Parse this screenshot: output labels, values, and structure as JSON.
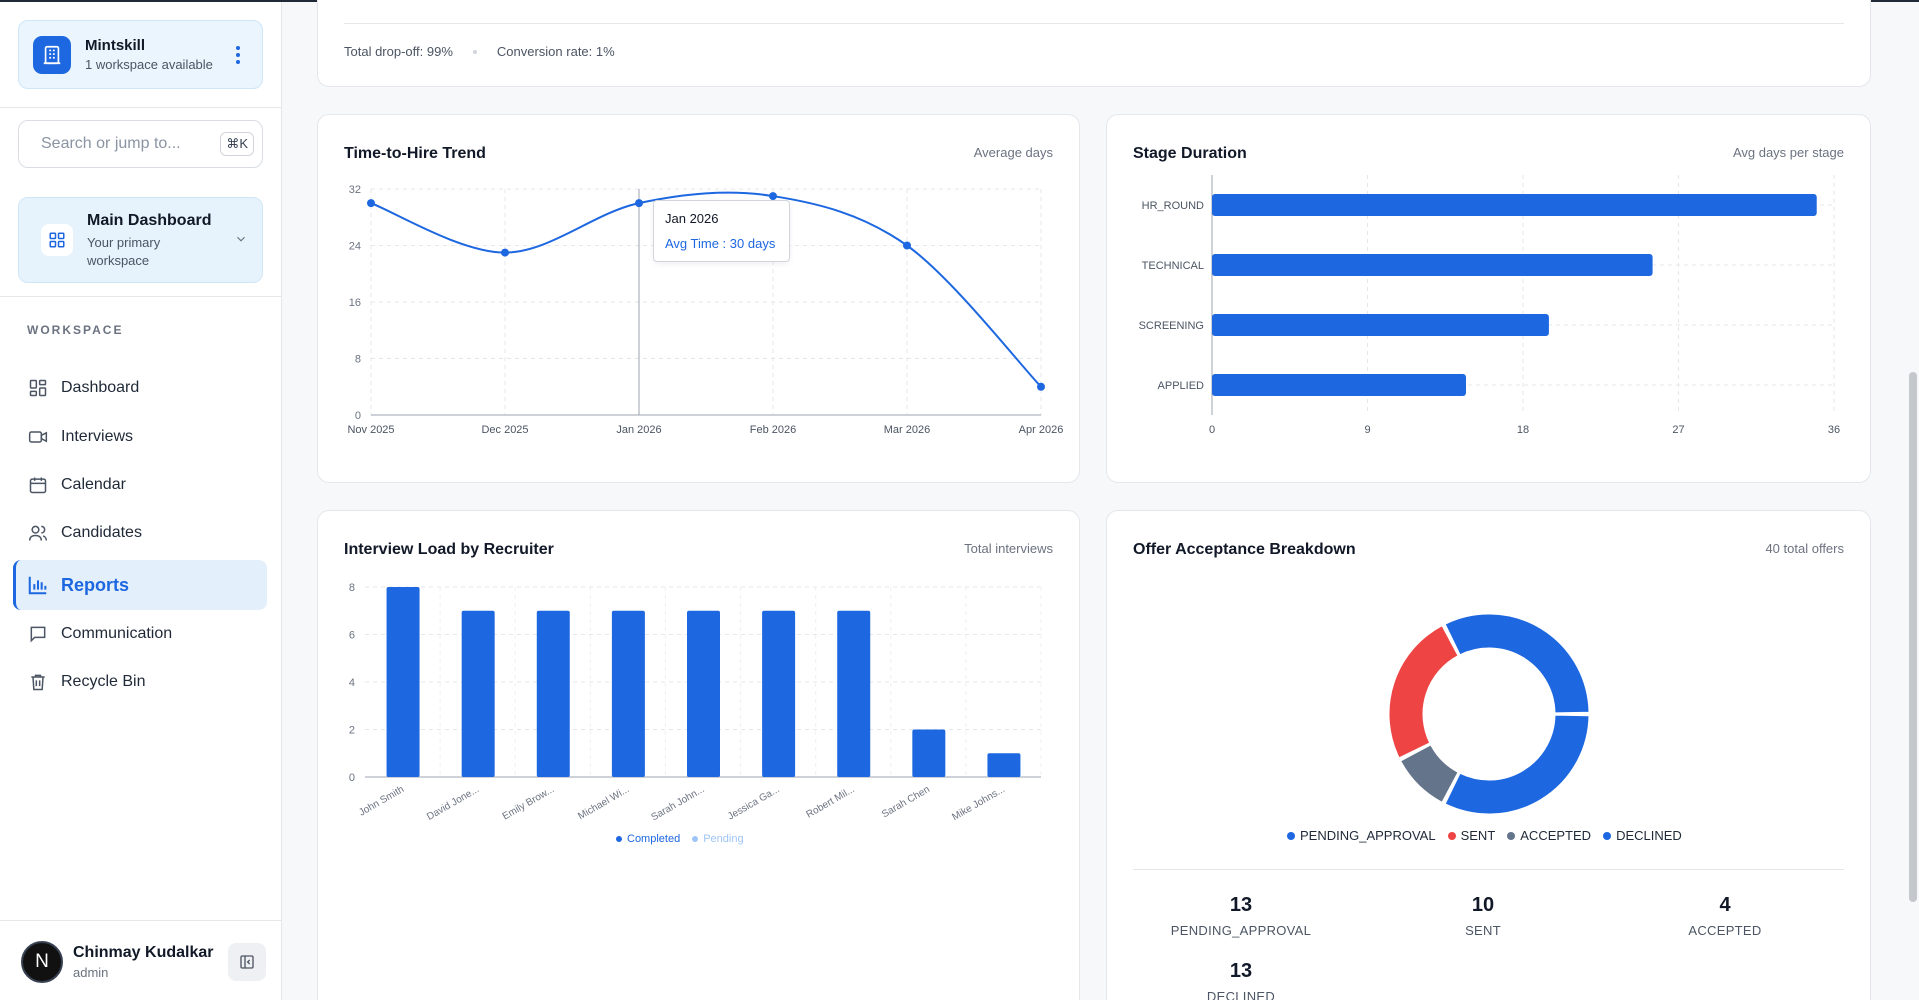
{
  "sidebar": {
    "workspace": {
      "name": "Mintskill",
      "subtitle": "1 workspace available"
    },
    "search": {
      "placeholder": "Search or jump to...",
      "shortcut": "⌘K"
    },
    "dashboard": {
      "title": "Main Dashboard",
      "subtitle": "Your primary workspace"
    },
    "section_label": "WORKSPACE",
    "items": [
      {
        "label": "Dashboard",
        "icon": "dashboard-icon",
        "active": false
      },
      {
        "label": "Interviews",
        "icon": "video-icon",
        "active": false
      },
      {
        "label": "Calendar",
        "icon": "calendar-icon",
        "active": false
      },
      {
        "label": "Candidates",
        "icon": "users-icon",
        "active": false
      },
      {
        "label": "Reports",
        "icon": "bar-chart-icon",
        "active": true
      },
      {
        "label": "Communication",
        "icon": "message-icon",
        "active": false
      },
      {
        "label": "Recycle Bin",
        "icon": "trash-icon",
        "active": false
      }
    ],
    "user": {
      "name": "Chinmay Kudalkar",
      "role": "admin",
      "initial": "N"
    }
  },
  "funnel": {
    "drop_off": "Total drop-off: 99%",
    "conversion": "Conversion rate: 1%"
  },
  "colors": {
    "primary": "#1d67e0",
    "sent": "#ef4444",
    "accepted": "#64748b",
    "pending_light": "#9ec5f5"
  },
  "chart_data": [
    {
      "type": "line",
      "title": "Time-to-Hire Trend",
      "subtitle": "Average days",
      "categories": [
        "Nov 2025",
        "Dec 2025",
        "Jan 2026",
        "Feb 2026",
        "Mar 2026",
        "Apr 2026"
      ],
      "values": [
        30,
        23,
        30,
        31,
        24,
        4
      ],
      "yticks": [
        0,
        8,
        16,
        24,
        32
      ],
      "ylim": [
        0,
        32
      ],
      "tooltip": {
        "title": "Jan 2026",
        "text": "Avg Time : 30 days"
      }
    },
    {
      "type": "bar",
      "orientation": "horizontal",
      "title": "Stage Duration",
      "subtitle": "Avg days per stage",
      "categories": [
        "HR_ROUND",
        "TECHNICAL",
        "SCREENING",
        "APPLIED"
      ],
      "values": [
        35,
        25.5,
        19.5,
        14.7
      ],
      "xticks": [
        0,
        9,
        18,
        27,
        36
      ],
      "xlim": [
        0,
        36
      ]
    },
    {
      "type": "bar",
      "title": "Interview Load by Recruiter",
      "subtitle": "Total interviews",
      "categories": [
        "John Smith",
        "David Jone...",
        "Emily Brow...",
        "Michael Wi...",
        "Sarah John...",
        "Jessica Ga...",
        "Robert Mil...",
        "Sarah Chen",
        "Mike Johns..."
      ],
      "series": [
        {
          "name": "Completed",
          "values": [
            8,
            7,
            7,
            7,
            7,
            7,
            7,
            2,
            1
          ]
        },
        {
          "name": "Pending",
          "values": [
            0,
            0,
            0,
            0,
            0,
            0,
            0,
            0,
            0
          ]
        }
      ],
      "yticks": [
        0,
        2,
        4,
        6,
        8
      ],
      "ylim": [
        0,
        8
      ]
    },
    {
      "type": "pie",
      "title": "Offer Acceptance Breakdown",
      "subtitle": "40 total offers",
      "slices": [
        {
          "label": "PENDING_APPROVAL",
          "value": 13
        },
        {
          "label": "SENT",
          "value": 10
        },
        {
          "label": "ACCEPTED",
          "value": 4
        },
        {
          "label": "DECLINED",
          "value": 13
        }
      ]
    }
  ]
}
